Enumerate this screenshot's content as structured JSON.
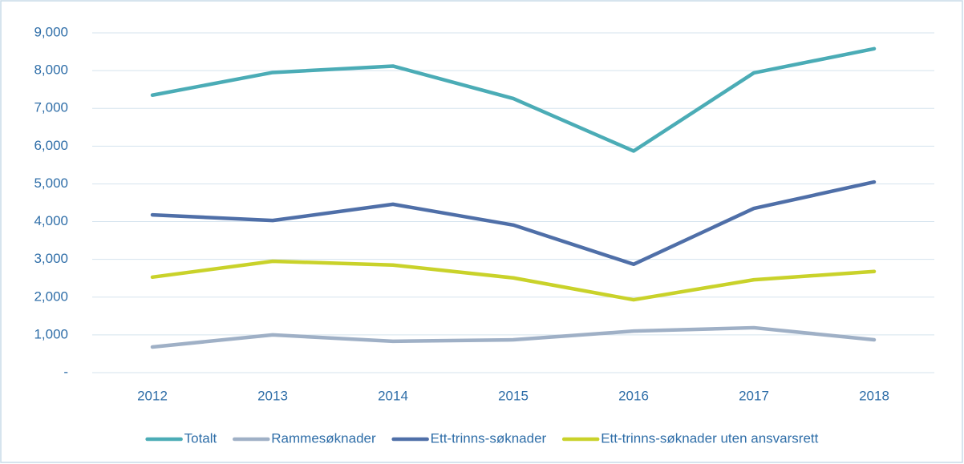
{
  "chart_data": {
    "type": "line",
    "categories": [
      "2012",
      "2013",
      "2014",
      "2015",
      "2016",
      "2017",
      "2018"
    ],
    "series": [
      {
        "name": "Totalt",
        "color": "#4bacb6",
        "values": [
          7350,
          7950,
          8120,
          7260,
          5870,
          7940,
          8580
        ]
      },
      {
        "name": "Rammesøknader",
        "color": "#9fb0c6",
        "values": [
          680,
          1000,
          830,
          870,
          1100,
          1190,
          870
        ]
      },
      {
        "name": "Ett-trinns-søknader",
        "color": "#4f6fa8",
        "values": [
          4180,
          4030,
          4460,
          3910,
          2870,
          4350,
          5050
        ]
      },
      {
        "name": "Ett-trinns-søknader uten ansvarsrett",
        "color": "#c9d22a",
        "values": [
          2530,
          2950,
          2850,
          2510,
          1930,
          2460,
          2680
        ]
      }
    ],
    "ylim": [
      0,
      9000
    ],
    "yticks": [
      {
        "value": 0,
        "label": "-"
      },
      {
        "value": 1000,
        "label": "1,000"
      },
      {
        "value": 2000,
        "label": "2,000"
      },
      {
        "value": 3000,
        "label": "3,000"
      },
      {
        "value": 4000,
        "label": "4,000"
      },
      {
        "value": 5000,
        "label": "5,000"
      },
      {
        "value": 6000,
        "label": "6,000"
      },
      {
        "value": 7000,
        "label": "7,000"
      },
      {
        "value": 8000,
        "label": "8,000"
      },
      {
        "value": 9000,
        "label": "9,000"
      }
    ],
    "grid": true,
    "legend": "bottom"
  }
}
